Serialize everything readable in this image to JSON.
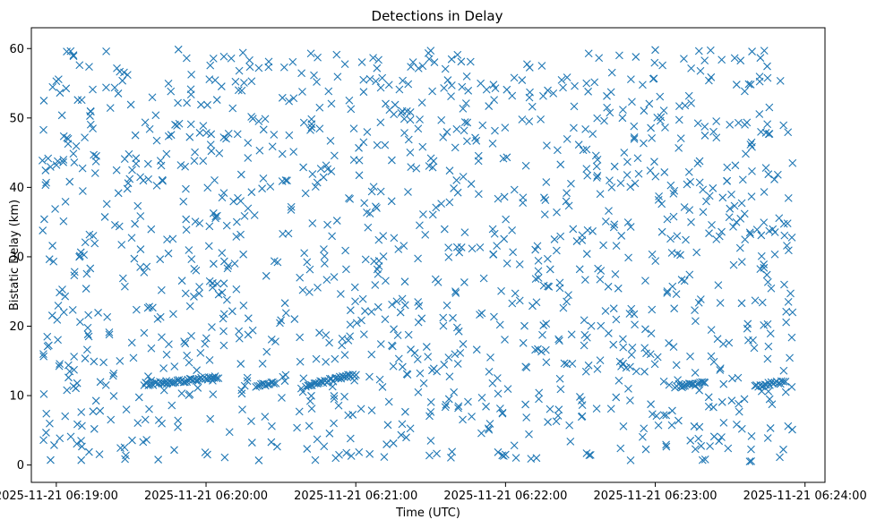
{
  "chart_data": {
    "type": "scatter",
    "title": "Detections in Delay",
    "xlabel": "Time (UTC)",
    "ylabel": "Bistatic Delay (km)",
    "x_range": [
      "2025-11-21 06:18:50",
      "2025-11-21 06:24:08"
    ],
    "ylim": [
      -2.5,
      63
    ],
    "x_ticks": [
      "2025-11-21 06:19:00",
      "2025-11-21 06:20:00",
      "2025-11-21 06:21:00",
      "2025-11-21 06:22:00",
      "2025-11-21 06:23:00",
      "2025-11-21 06:24:00"
    ],
    "y_ticks": [
      "0",
      "10",
      "20",
      "30",
      "40",
      "50",
      "60"
    ],
    "grid": false,
    "marker": "x",
    "color": "#1f77b4",
    "approx_point_count": 1300,
    "clutter_time_range": [
      "2025-11-21 06:18:54",
      "2025-11-21 06:23:55"
    ],
    "clutter_delay_range": [
      0.5,
      60
    ],
    "tracks": [
      {
        "start": "2025-11-21 06:19:35",
        "end": "2025-11-21 06:20:05",
        "delay_start": 11.6,
        "delay_end": 12.6
      },
      {
        "start": "2025-11-21 06:20:20",
        "end": "2025-11-21 06:20:28",
        "delay_start": 11.3,
        "delay_end": 11.9
      },
      {
        "start": "2025-11-21 06:20:40",
        "end": "2025-11-21 06:21:00",
        "delay_start": 11.4,
        "delay_end": 13.0
      },
      {
        "start": "2025-11-21 06:23:08",
        "end": "2025-11-21 06:23:20",
        "delay_start": 11.4,
        "delay_end": 11.8
      },
      {
        "start": "2025-11-21 06:23:40",
        "end": "2025-11-21 06:23:52",
        "delay_start": 11.3,
        "delay_end": 12.0
      }
    ],
    "sample_points": [
      {
        "t": "2025-11-21 06:18:55",
        "d": 52.5
      },
      {
        "t": "2025-11-21 06:19:00",
        "d": 55.3
      },
      {
        "t": "2025-11-21 06:19:20",
        "d": 59.6
      },
      {
        "t": "2025-11-21 06:19:10",
        "d": 0.7
      },
      {
        "t": "2025-11-21 06:21:30",
        "d": 59.7
      },
      {
        "t": "2025-11-21 06:23:00",
        "d": 59.8
      },
      {
        "t": "2025-11-21 06:23:20",
        "d": 0.8
      },
      {
        "t": "2025-11-21 06:23:55",
        "d": 43.5
      },
      {
        "t": "2025-11-21 06:23:55",
        "d": 22.0
      },
      {
        "t": "2025-11-21 06:22:00",
        "d": 1.5
      }
    ]
  }
}
